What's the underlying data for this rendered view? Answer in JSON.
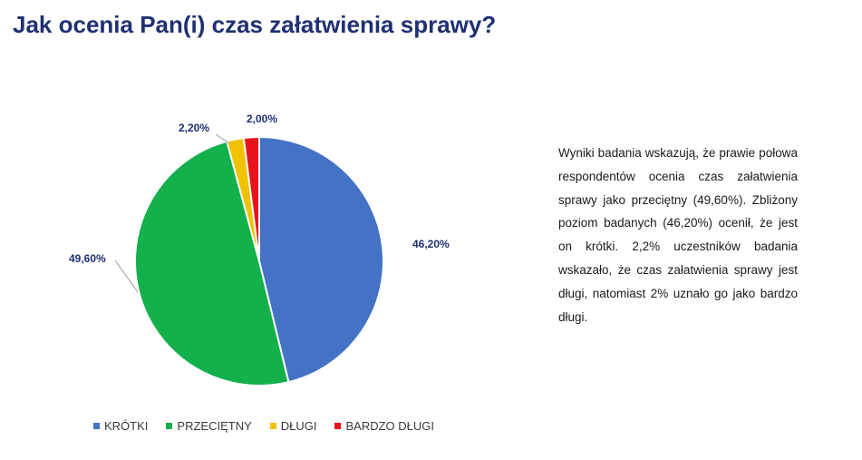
{
  "slide": {
    "title": "Jak ocenia Pan(i) czas załatwienia sprawy?",
    "description": "Wyniki badania wskazują, że prawie połowa respondentów ocenia czas załatwienia sprawy jako przeciętny (49,60%). Zbliżony poziom badanych (46,20%) ocenił, że jest on krótki. 2,2% uczestników badania wskazało, że czas załatwienia sprawy jest długi, natomiast 2% uznało go jako bardzo długi."
  },
  "chart_data": {
    "type": "pie",
    "title": "",
    "legend_position": "bottom",
    "categories": [
      "KRÓTKI",
      "PRZECIĘTNY",
      "DŁUGI",
      "BARDZO DŁUGI"
    ],
    "values": [
      46.2,
      49.6,
      2.2,
      2.0
    ],
    "labels": [
      "46,20%",
      "49,60%",
      "2,20%",
      "2,00%"
    ],
    "colors": [
      "#4472c4",
      "#13b04b",
      "#f2c200",
      "#e8141b"
    ],
    "start_angle": "12 o'clock",
    "direction": "clockwise"
  }
}
